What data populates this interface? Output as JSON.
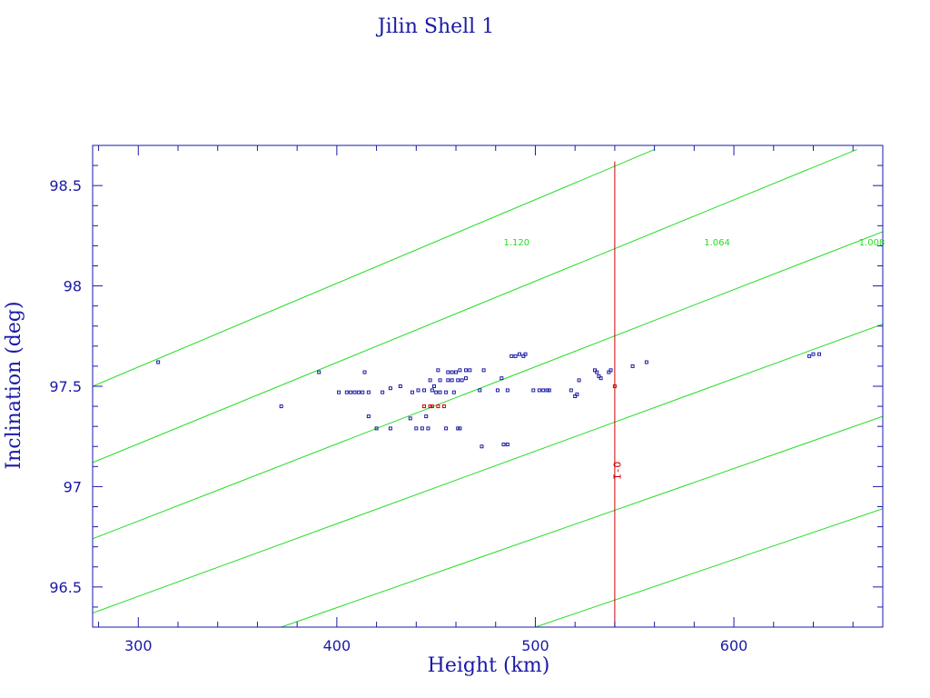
{
  "chart_data": {
    "type": "scatter",
    "title": "Jilin Shell 1",
    "xlabel": "Height (km)",
    "ylabel": "Inclination (deg)",
    "xlim": [
      277,
      675
    ],
    "ylim": [
      96.3,
      98.7
    ],
    "xticks": [
      300,
      400,
      500,
      600
    ],
    "xtick_labels": [
      "300",
      "400",
      "500",
      "600"
    ],
    "yticks": [
      96.5,
      97,
      97.5,
      98,
      98.5
    ],
    "ytick_labels": [
      "96.5",
      "97",
      "97.5",
      "98",
      "98.5"
    ],
    "minor_x_step": 20,
    "minor_y_step": 0.1,
    "grid": false,
    "colors": {
      "axes": "#1a1aa6",
      "points": "#1a1aa6",
      "highlight": "#cc0000",
      "diagonal": "#22dd22",
      "vertical": "#cc0000"
    },
    "vertical_line": {
      "x": 540
    },
    "red_label": {
      "text": "I-O",
      "x": 543,
      "y": 97.08
    },
    "diagonals": [
      {
        "x1": 277,
        "y1": 97.5,
        "x2": 560,
        "y2": 98.68
      },
      {
        "x1": 277,
        "y1": 97.12,
        "x2": 662,
        "y2": 98.68
      },
      {
        "x1": 277,
        "y1": 96.74,
        "x2": 675,
        "y2": 98.27
      },
      {
        "x1": 277,
        "y1": 96.37,
        "x2": 675,
        "y2": 97.81
      },
      {
        "x1": 372,
        "y1": 96.3,
        "x2": 675,
        "y2": 97.35
      },
      {
        "x1": 500,
        "y1": 96.3,
        "x2": 675,
        "y2": 96.89
      }
    ],
    "diagonal_labels": [
      {
        "text": "1.120",
        "x": 484,
        "y": 98.22
      },
      {
        "text": "1.064",
        "x": 585,
        "y": 98.22
      },
      {
        "text": "1.008",
        "x": 663,
        "y": 98.22
      }
    ],
    "series": [
      {
        "points": [
          [
            310,
            97.62
          ],
          [
            372,
            97.4
          ],
          [
            391,
            97.57
          ],
          [
            401,
            97.47
          ],
          [
            405,
            97.47
          ],
          [
            407,
            97.47
          ],
          [
            409,
            97.47
          ],
          [
            411,
            97.47
          ],
          [
            413,
            97.47
          ],
          [
            414,
            97.57
          ],
          [
            416,
            97.35
          ],
          [
            416,
            97.47
          ],
          [
            420,
            97.29
          ],
          [
            423,
            97.47
          ],
          [
            427,
            97.49
          ],
          [
            427,
            97.29
          ],
          [
            432,
            97.5
          ],
          [
            437,
            97.34
          ],
          [
            438,
            97.47
          ],
          [
            440,
            97.29
          ],
          [
            441,
            97.48
          ],
          [
            443,
            97.29
          ],
          [
            444,
            97.48
          ],
          [
            445,
            97.35
          ],
          [
            446,
            97.29
          ],
          [
            447,
            97.53
          ],
          [
            448,
            97.48
          ],
          [
            449,
            97.5
          ],
          [
            450,
            97.47
          ],
          [
            451,
            97.58
          ],
          [
            452,
            97.47
          ],
          [
            452,
            97.53
          ],
          [
            455,
            97.47
          ],
          [
            455,
            97.29
          ],
          [
            456,
            97.57
          ],
          [
            456,
            97.53
          ],
          [
            458,
            97.53
          ],
          [
            458,
            97.57
          ],
          [
            459,
            97.47
          ],
          [
            460,
            97.57
          ],
          [
            461,
            97.29
          ],
          [
            461,
            97.53
          ],
          [
            462,
            97.58
          ],
          [
            462,
            97.29
          ],
          [
            463,
            97.53
          ],
          [
            465,
            97.58
          ],
          [
            465,
            97.54
          ],
          [
            467,
            97.58
          ],
          [
            472,
            97.48
          ],
          [
            473,
            97.2
          ],
          [
            474,
            97.58
          ],
          [
            481,
            97.48
          ],
          [
            483,
            97.54
          ],
          [
            484,
            97.21
          ],
          [
            486,
            97.48
          ],
          [
            486,
            97.21
          ],
          [
            488,
            97.65
          ],
          [
            490,
            97.65
          ],
          [
            492,
            97.66
          ],
          [
            494,
            97.65
          ],
          [
            495,
            97.66
          ],
          [
            499,
            97.48
          ],
          [
            502,
            97.48
          ],
          [
            504,
            97.48
          ],
          [
            506,
            97.48
          ],
          [
            507,
            97.48
          ],
          [
            518,
            97.48
          ],
          [
            520,
            97.45
          ],
          [
            521,
            97.46
          ],
          [
            522,
            97.53
          ],
          [
            530,
            97.58
          ],
          [
            531,
            97.57
          ],
          [
            532,
            97.55
          ],
          [
            533,
            97.54
          ],
          [
            537,
            97.57
          ],
          [
            538,
            97.58
          ],
          [
            549,
            97.6
          ],
          [
            556,
            97.62
          ],
          [
            638,
            97.65
          ],
          [
            640,
            97.66
          ],
          [
            643,
            97.66
          ]
        ]
      },
      {
        "points": [
          [
            444,
            97.4
          ],
          [
            447,
            97.4
          ],
          [
            448,
            97.4
          ],
          [
            451,
            97.4
          ],
          [
            454,
            97.4
          ],
          [
            540,
            97.5
          ]
        ]
      }
    ]
  }
}
